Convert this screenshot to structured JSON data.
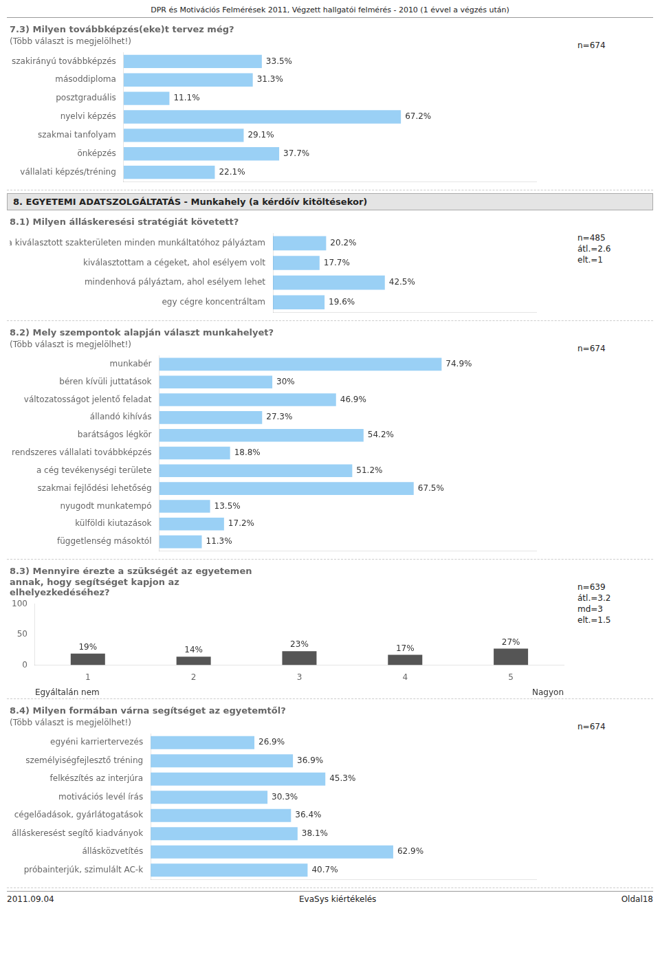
{
  "title": "DPR és Motivációs Felmérések 2011, Végzett hallgatói felmérés - 2010 (1 évvel a végzés után)",
  "annotations": [
    "8. EGYETEMI ADATSZOLGÁLTATÁS - Munkahely (a kérdőív kitöltésekor)",
    "2011.09.04",
    "EvaSys kiértékelés",
    "Oldal18"
  ],
  "chart_data": [
    {
      "type": "bar",
      "orientation": "horizontal",
      "title": "7.3) Milyen továbbképzés(eke)t tervez még?",
      "subtitle": "(Több választ is megjelölhet!)",
      "annotations": [
        "n=674"
      ],
      "categories": [
        "szakirányú továbbképzés",
        "másoddiploma",
        "posztgraduális",
        "nyelvi képzés",
        "szakmai tanfolyam",
        "önképzés",
        "vállalati képzés/tréning"
      ],
      "values": [
        33.5,
        31.3,
        11.1,
        67.2,
        29.1,
        37.7,
        22.1
      ],
      "value_labels": [
        "33.5%",
        "31.3%",
        "11.1%",
        "67.2%",
        "29.1%",
        "37.7%",
        "22.1%"
      ],
      "xlim": [
        0,
        100
      ],
      "grid": false,
      "tick_labels": "y",
      "data_labels": true
    },
    {
      "type": "bar",
      "orientation": "horizontal",
      "title": "8.1) Milyen álláskeresési stratégiát követett?",
      "annotations": [
        "n=485",
        "átl.=2.6",
        "elt.=1"
      ],
      "categories": [
        "a kiválasztott szakterületen minden munkáltatóhoz pályáztam",
        "kiválasztottam a cégeket, ahol esélyem volt",
        "mindenhová pályáztam, ahol esélyem lehet",
        "egy cégre koncentráltam"
      ],
      "values": [
        20.2,
        17.7,
        42.5,
        19.6
      ],
      "value_labels": [
        "20.2%",
        "17.7%",
        "42.5%",
        "19.6%"
      ],
      "xlim": [
        0,
        100
      ],
      "grid": false,
      "tick_labels": "y",
      "data_labels": true
    },
    {
      "type": "bar",
      "orientation": "horizontal",
      "title": "8.2) Mely szempontok alapján választ munkahelyet?",
      "subtitle": "(Több választ is megjelölhet!)",
      "annotations": [
        "n=674"
      ],
      "categories": [
        "munkabér",
        "béren kívüli juttatások",
        "változatosságot jelentő feladat",
        "állandó kihívás",
        "barátságos légkör",
        "rendszeres vállalati továbbképzés",
        "a cég tevékenységi területe",
        "szakmai fejlődési lehetőség",
        "nyugodt munkatempó",
        "külföldi kiutazások",
        "függetlenség másoktól"
      ],
      "values": [
        74.9,
        30.0,
        46.9,
        27.3,
        54.2,
        18.8,
        51.2,
        67.5,
        13.5,
        17.2,
        11.3
      ],
      "value_labels": [
        "74.9%",
        "30%",
        "46.9%",
        "27.3%",
        "54.2%",
        "18.8%",
        "51.2%",
        "67.5%",
        "13.5%",
        "17.2%",
        "11.3%"
      ],
      "xlim": [
        0,
        100
      ],
      "grid": false,
      "tick_labels": "y",
      "data_labels": true
    },
    {
      "type": "bar",
      "title": [
        "8.3) Mennyire érezte a szükségét az egyetemen",
        "annak, hogy segítséget kapjon az",
        "elhelyezkedéséhez?"
      ],
      "annotations": [
        "n=639",
        "átl.=3.2",
        "md=3",
        "elt.=1.5"
      ],
      "xlabel": [
        "Egyáltalán nem",
        "Nagyon"
      ],
      "categories": [
        "1",
        "2",
        "3",
        "4",
        "5"
      ],
      "values": [
        19,
        14,
        23,
        17,
        27
      ],
      "value_labels": [
        "19%",
        "14%",
        "23%",
        "17%",
        "27%"
      ],
      "color": "#555555",
      "ylim": [
        0,
        100
      ],
      "yticks": [
        0,
        50,
        100
      ],
      "grid": false,
      "data_labels": true
    },
    {
      "type": "bar",
      "orientation": "horizontal",
      "title": "8.4) Milyen formában várna segítséget az egyetemtől?",
      "subtitle": "(Több választ is megjelölhet!)",
      "annotations": [
        "n=674"
      ],
      "categories": [
        "egyéni karriertervezés",
        "személyiségfejlesztő tréning",
        "felkészítés az interjúra",
        "motivációs levél írás",
        "cégelőadások, gyárlátogatások",
        "álláskeresést segítő kiadványok",
        "állásközvetítés",
        "próbainterjúk, szimulált AC-k"
      ],
      "values": [
        26.9,
        36.9,
        45.3,
        30.3,
        36.4,
        38.1,
        62.9,
        40.7
      ],
      "value_labels": [
        "26.9%",
        "36.9%",
        "45.3%",
        "30.3%",
        "36.4%",
        "38.1%",
        "62.9%",
        "40.7%"
      ],
      "xlim": [
        0,
        100
      ],
      "grid": false,
      "tick_labels": "y",
      "data_labels": true
    }
  ]
}
